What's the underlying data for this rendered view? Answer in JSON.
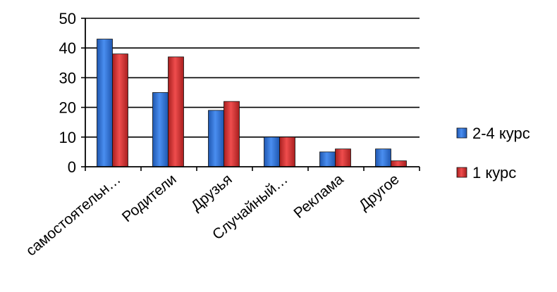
{
  "chart_data": {
    "type": "bar",
    "categories": [
      "самостоятельн…",
      "Родители",
      "Друзья",
      "Случайный…",
      "Реклама",
      "Другое"
    ],
    "series": [
      {
        "name": "2-4 курс",
        "values": [
          43,
          25,
          19,
          10,
          5,
          6
        ],
        "color": "#2f73d6"
      },
      {
        "name": "1 курс",
        "values": [
          38,
          37,
          22,
          10,
          6,
          2
        ],
        "color": "#d63434"
      }
    ],
    "yticks": [
      0,
      10,
      20,
      30,
      40,
      50
    ],
    "ylim": [
      0,
      50
    ],
    "grid": true,
    "legend_position": "right"
  }
}
